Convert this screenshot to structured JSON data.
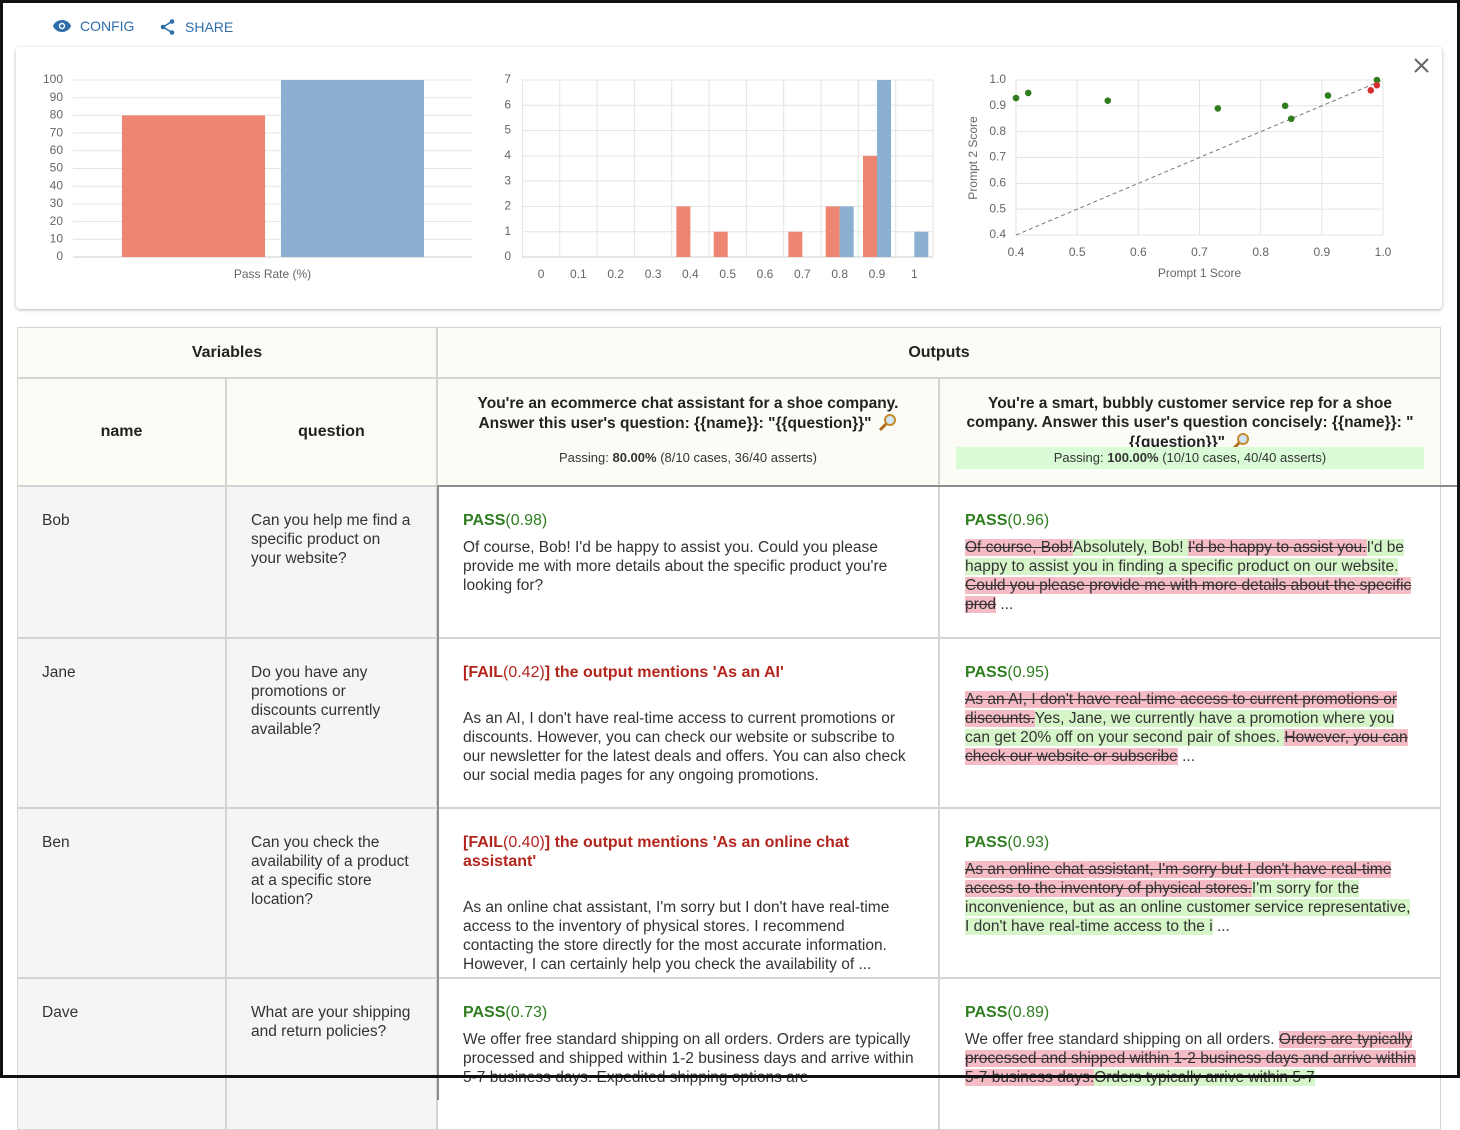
{
  "toolbar": {
    "config": "CONFIG",
    "share": "SHARE"
  },
  "chart_data": [
    {
      "type": "bar",
      "xlabel": "Pass Rate (%)",
      "categories": [
        null,
        null
      ],
      "values": [
        80,
        100
      ],
      "colors": [
        "#ee8573",
        "#8aafd1"
      ],
      "ylim": [
        0,
        100
      ],
      "yticks": [
        0,
        10,
        20,
        30,
        40,
        50,
        60,
        70,
        80,
        90,
        100
      ],
      "grid": true
    },
    {
      "type": "bar",
      "categories": [
        "0",
        "0.1",
        "0.2",
        "0.3",
        "0.4",
        "0.5",
        "0.6",
        "0.7",
        "0.8",
        "0.9",
        "1"
      ],
      "series": [
        {
          "color": "#ee8573",
          "values": [
            0,
            0,
            0,
            0,
            2,
            1,
            0,
            1,
            2,
            4,
            0
          ]
        },
        {
          "color": "#8aafd1",
          "values": [
            0,
            0,
            0,
            0,
            0,
            0,
            0,
            0,
            2,
            7,
            1
          ]
        }
      ],
      "ylim": [
        0,
        7
      ],
      "yticks": [
        0,
        1,
        2,
        3,
        4,
        5,
        6,
        7
      ],
      "grid": true
    },
    {
      "type": "scatter",
      "xlabel": "Prompt 1 Score",
      "ylabel": "Prompt 2 Score",
      "series": [
        {
          "color": "#2e7d1f",
          "x": [
            0.4,
            0.42,
            0.55,
            0.73,
            0.84,
            0.85,
            0.91,
            0.99
          ],
          "y": [
            0.93,
            0.95,
            0.92,
            0.89,
            0.9,
            0.85,
            0.94,
            1.0
          ]
        },
        {
          "color": "#d32f2f",
          "x": [
            0.98,
            0.99
          ],
          "y": [
            0.96,
            0.98
          ]
        }
      ],
      "xlim": [
        0.4,
        1.0
      ],
      "ylim": [
        0.4,
        1.0
      ],
      "xticks": [
        0.4,
        0.5,
        0.6,
        0.7,
        0.8,
        0.9,
        {
          "value": 1,
          "label": "1.0"
        }
      ],
      "yticks": [
        0.4,
        0.5,
        0.6,
        0.7,
        0.8,
        0.9,
        {
          "value": 1,
          "label": "1.0"
        }
      ],
      "grid": true,
      "reference_line": true
    }
  ],
  "table": {
    "group_headers": [
      "Variables",
      "Outputs"
    ],
    "var_headers": [
      "name",
      "question"
    ],
    "prompts": [
      {
        "text": "You're an ecommerce chat assistant for a shoe company. Answer this user's question: {{name}}: \"{{question}}\"",
        "passing_label": "Passing:",
        "rate": "80.00%",
        "detail": "(8/10 cases, 36/40 asserts)",
        "highlight": false
      },
      {
        "text": "You're a smart, bubbly customer service rep for a shoe company. Answer this user's question concisely: {{name}}: \"{{question}}\"",
        "passing_label": "Passing:",
        "rate": "100.00%",
        "detail": "(10/10 cases, 40/40 asserts)",
        "highlight": true
      }
    ],
    "rows": [
      {
        "vars": [
          "Bob",
          "Can you help me find a specific product on your website?"
        ],
        "outputs": [
          {
            "passed": true,
            "status": "PASS",
            "score": "(0.98)",
            "segments": [
              {
                "kind": "same",
                "text": "Of course, Bob! I'd be happy to assist you. Could you please provide me with more details about the specific product you're looking for?"
              }
            ]
          },
          {
            "passed": true,
            "status": "PASS",
            "score": "(0.96)",
            "segments": [
              {
                "kind": "del",
                "text": "Of course, Bob!"
              },
              {
                "kind": "ins",
                "text": "Absolutely, Bob! "
              },
              {
                "kind": "del",
                "text": "I'd be happy to assist you."
              },
              {
                "kind": "ins",
                "text": "I'd be happy to assist you in finding a specific product on our website. "
              },
              {
                "kind": "del",
                "text": "Could you please provide me with more details about the specific prod"
              },
              {
                "kind": "same",
                "text": " ..."
              }
            ]
          }
        ]
      },
      {
        "vars": [
          "Jane",
          "Do you have any promotions or discounts currently available?"
        ],
        "outputs": [
          {
            "passed": false,
            "status": "[FAIL",
            "score": "(0.42)",
            "reason": "] the output mentions 'As an AI'",
            "segments": [
              {
                "kind": "same",
                "text": "As an AI, I don't have real-time access to current promotions or discounts. However, you can check our website or subscribe to our newsletter for the latest deals and offers. You can also check our social media pages for any ongoing promotions."
              }
            ]
          },
          {
            "passed": true,
            "status": "PASS",
            "score": "(0.95)",
            "segments": [
              {
                "kind": "del",
                "text": "As an AI, I don't have real-time access to current promotions or discounts."
              },
              {
                "kind": "ins",
                "text": "Yes, Jane, we currently have a promotion where you can get 20% off on your second pair of shoes. "
              },
              {
                "kind": "del",
                "text": "However, you can check our website or subscribe"
              },
              {
                "kind": "same",
                "text": " ..."
              }
            ]
          }
        ]
      },
      {
        "vars": [
          "Ben",
          "Can you check the availability of a product at a specific store location?"
        ],
        "outputs": [
          {
            "passed": false,
            "status": "[FAIL",
            "score": "(0.40)",
            "reason": "] the output mentions 'As an online chat assistant'",
            "segments": [
              {
                "kind": "same",
                "text": "As an online chat assistant, I'm sorry but I don't have real-time access to the inventory of physical stores. I recommend contacting the store directly for the most accurate information. However, I can certainly help you check the availability of ..."
              }
            ]
          },
          {
            "passed": true,
            "status": "PASS",
            "score": "(0.93)",
            "segments": [
              {
                "kind": "del",
                "text": "As an online chat assistant, I'm sorry but I don't have real-time access to the inventory of physical stores."
              },
              {
                "kind": "ins",
                "text": "I'm sorry for the inconvenience, but as an online customer service representative, I don't have real-time access to the i"
              },
              {
                "kind": "same",
                "text": " ..."
              }
            ]
          }
        ]
      },
      {
        "vars": [
          "Dave",
          "What are your shipping and return policies?"
        ],
        "outputs": [
          {
            "passed": true,
            "status": "PASS",
            "score": "(0.73)",
            "segments": [
              {
                "kind": "same",
                "text": "We offer free standard shipping on all orders. Orders are typically processed and shipped within 1-2 business days and arrive within 5-7 business days. Expedited shipping options are"
              }
            ]
          },
          {
            "passed": true,
            "status": "PASS",
            "score": "(0.89)",
            "segments": [
              {
                "kind": "same",
                "text": "We offer free standard shipping on all orders. "
              },
              {
                "kind": "del",
                "text": "Orders are typically processed and shipped within 1-2 business days and arrive within 5-7 business days."
              },
              {
                "kind": "ins",
                "text": "Orders typically arrive within 5-7"
              }
            ]
          }
        ]
      }
    ]
  }
}
